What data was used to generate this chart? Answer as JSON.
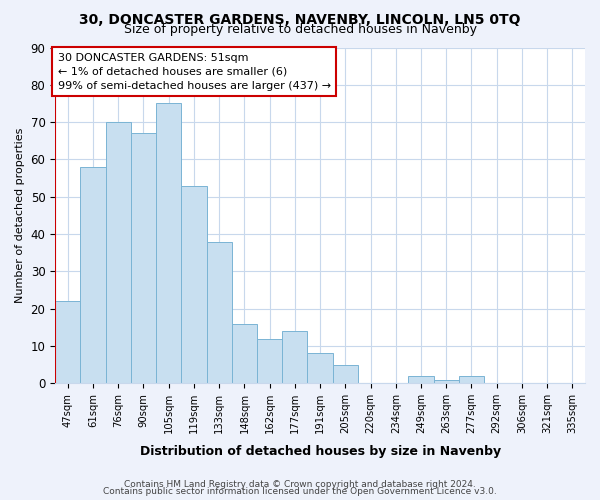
{
  "title": "30, DONCASTER GARDENS, NAVENBY, LINCOLN, LN5 0TQ",
  "subtitle": "Size of property relative to detached houses in Navenby",
  "xlabel": "Distribution of detached houses by size in Navenby",
  "ylabel": "Number of detached properties",
  "bar_labels": [
    "47sqm",
    "61sqm",
    "76sqm",
    "90sqm",
    "105sqm",
    "119sqm",
    "133sqm",
    "148sqm",
    "162sqm",
    "177sqm",
    "191sqm",
    "205sqm",
    "220sqm",
    "234sqm",
    "249sqm",
    "263sqm",
    "277sqm",
    "292sqm",
    "306sqm",
    "321sqm",
    "335sqm"
  ],
  "bar_heights": [
    22,
    58,
    70,
    67,
    75,
    53,
    38,
    16,
    12,
    14,
    8,
    5,
    0,
    0,
    2,
    1,
    2,
    0,
    0,
    0,
    0
  ],
  "bar_color": "#c8dff0",
  "bar_edge_color": "#7ab4d4",
  "highlight_edge_color": "#cc0000",
  "ylim": [
    0,
    90
  ],
  "yticks": [
    0,
    10,
    20,
    30,
    40,
    50,
    60,
    70,
    80,
    90
  ],
  "annotation_box_text": "30 DONCASTER GARDENS: 51sqm\n← 1% of detached houses are smaller (6)\n99% of semi-detached houses are larger (437) →",
  "footer_line1": "Contains HM Land Registry data © Crown copyright and database right 2024.",
  "footer_line2": "Contains public sector information licensed under the Open Government Licence v3.0.",
  "bg_color": "#eef2fb",
  "plot_bg_color": "#ffffff",
  "grid_color": "#c8d8ec"
}
